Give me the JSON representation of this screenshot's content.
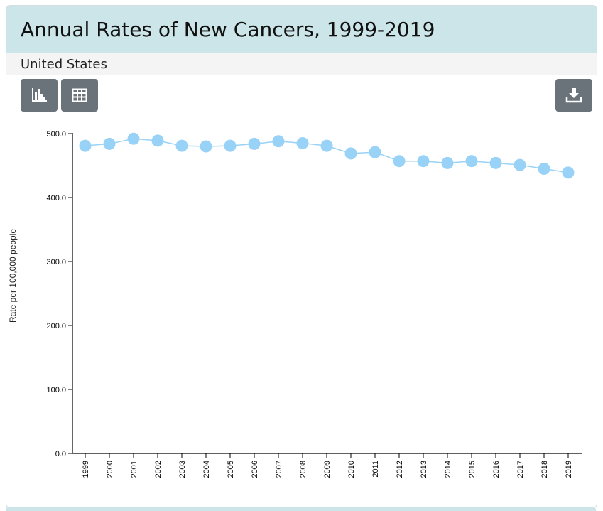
{
  "header": {
    "title": "Annual Rates of New Cancers, 1999-2019"
  },
  "subheader": {
    "location": "United States"
  },
  "toolbar": {
    "chart_view_icon": "bar-chart-icon",
    "table_view_icon": "table-grid-icon",
    "download_icon": "download-icon"
  },
  "colors": {
    "header_bg": "#cce5e8",
    "button_bg": "#6b737a",
    "series": "#99d2f7",
    "axis": "#000000"
  },
  "chart_data": {
    "type": "line",
    "title": "",
    "xlabel": "",
    "ylabel": "Rate per 100,000 people",
    "ylim": [
      0,
      500
    ],
    "yticks": [
      "0.0",
      "100.0",
      "200.0",
      "300.0",
      "400.0",
      "500.0"
    ],
    "ytick_values": [
      0,
      100,
      200,
      300,
      400,
      500
    ],
    "categories": [
      "1999",
      "2000",
      "2001",
      "2002",
      "2003",
      "2004",
      "2005",
      "2006",
      "2007",
      "2008",
      "2009",
      "2010",
      "2011",
      "2012",
      "2013",
      "2014",
      "2015",
      "2016",
      "2017",
      "2018",
      "2019"
    ],
    "series": [
      {
        "name": "",
        "values": [
          481,
          484,
          492,
          489,
          481,
          480,
          481,
          484,
          488,
          485,
          481,
          469,
          471,
          457,
          457,
          454,
          457,
          454,
          451,
          445,
          439
        ]
      }
    ],
    "grid": false,
    "markers": true
  }
}
